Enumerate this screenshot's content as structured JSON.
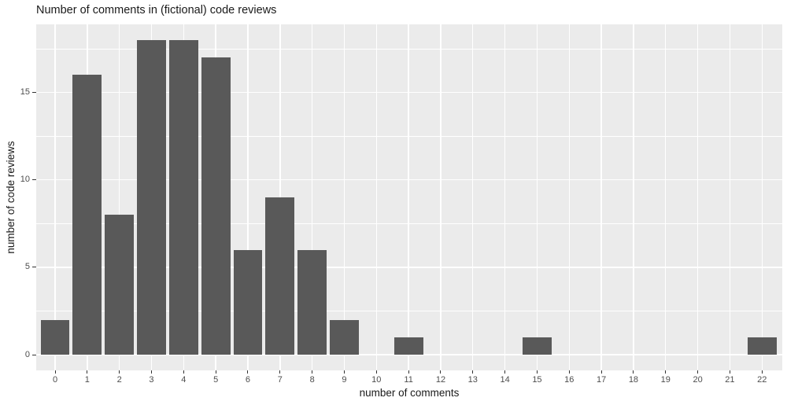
{
  "chart_data": {
    "type": "bar",
    "title": "Number of comments in (fictional) code reviews",
    "xlabel": "number of comments",
    "ylabel": "number of code reviews",
    "categories": [
      0,
      1,
      2,
      3,
      4,
      5,
      6,
      7,
      8,
      9,
      10,
      11,
      12,
      13,
      14,
      15,
      16,
      17,
      18,
      19,
      20,
      21,
      22
    ],
    "values": [
      2,
      16,
      8,
      18,
      18,
      17,
      6,
      9,
      6,
      2,
      0,
      1,
      0,
      0,
      0,
      1,
      0,
      0,
      0,
      0,
      0,
      0,
      1
    ],
    "y_ticks": [
      0,
      5,
      10,
      15
    ],
    "y_minor_ticks": [
      2.5,
      7.5,
      12.5,
      17.5
    ],
    "ylim": [
      -0.9,
      18.9
    ],
    "grid": "major-and-minor-horizontal, major-vertical",
    "legend": "none",
    "panel_style": "ggplot-grey"
  },
  "style": {
    "bar_color": "#595959",
    "panel_bg": "#ebebeb",
    "grid_color": "#ffffff",
    "tick_label_color": "#4d4d4d",
    "tick_mark_color": "#333333",
    "text_color": "#1a1a1a",
    "page_bg": "#ffffff"
  }
}
